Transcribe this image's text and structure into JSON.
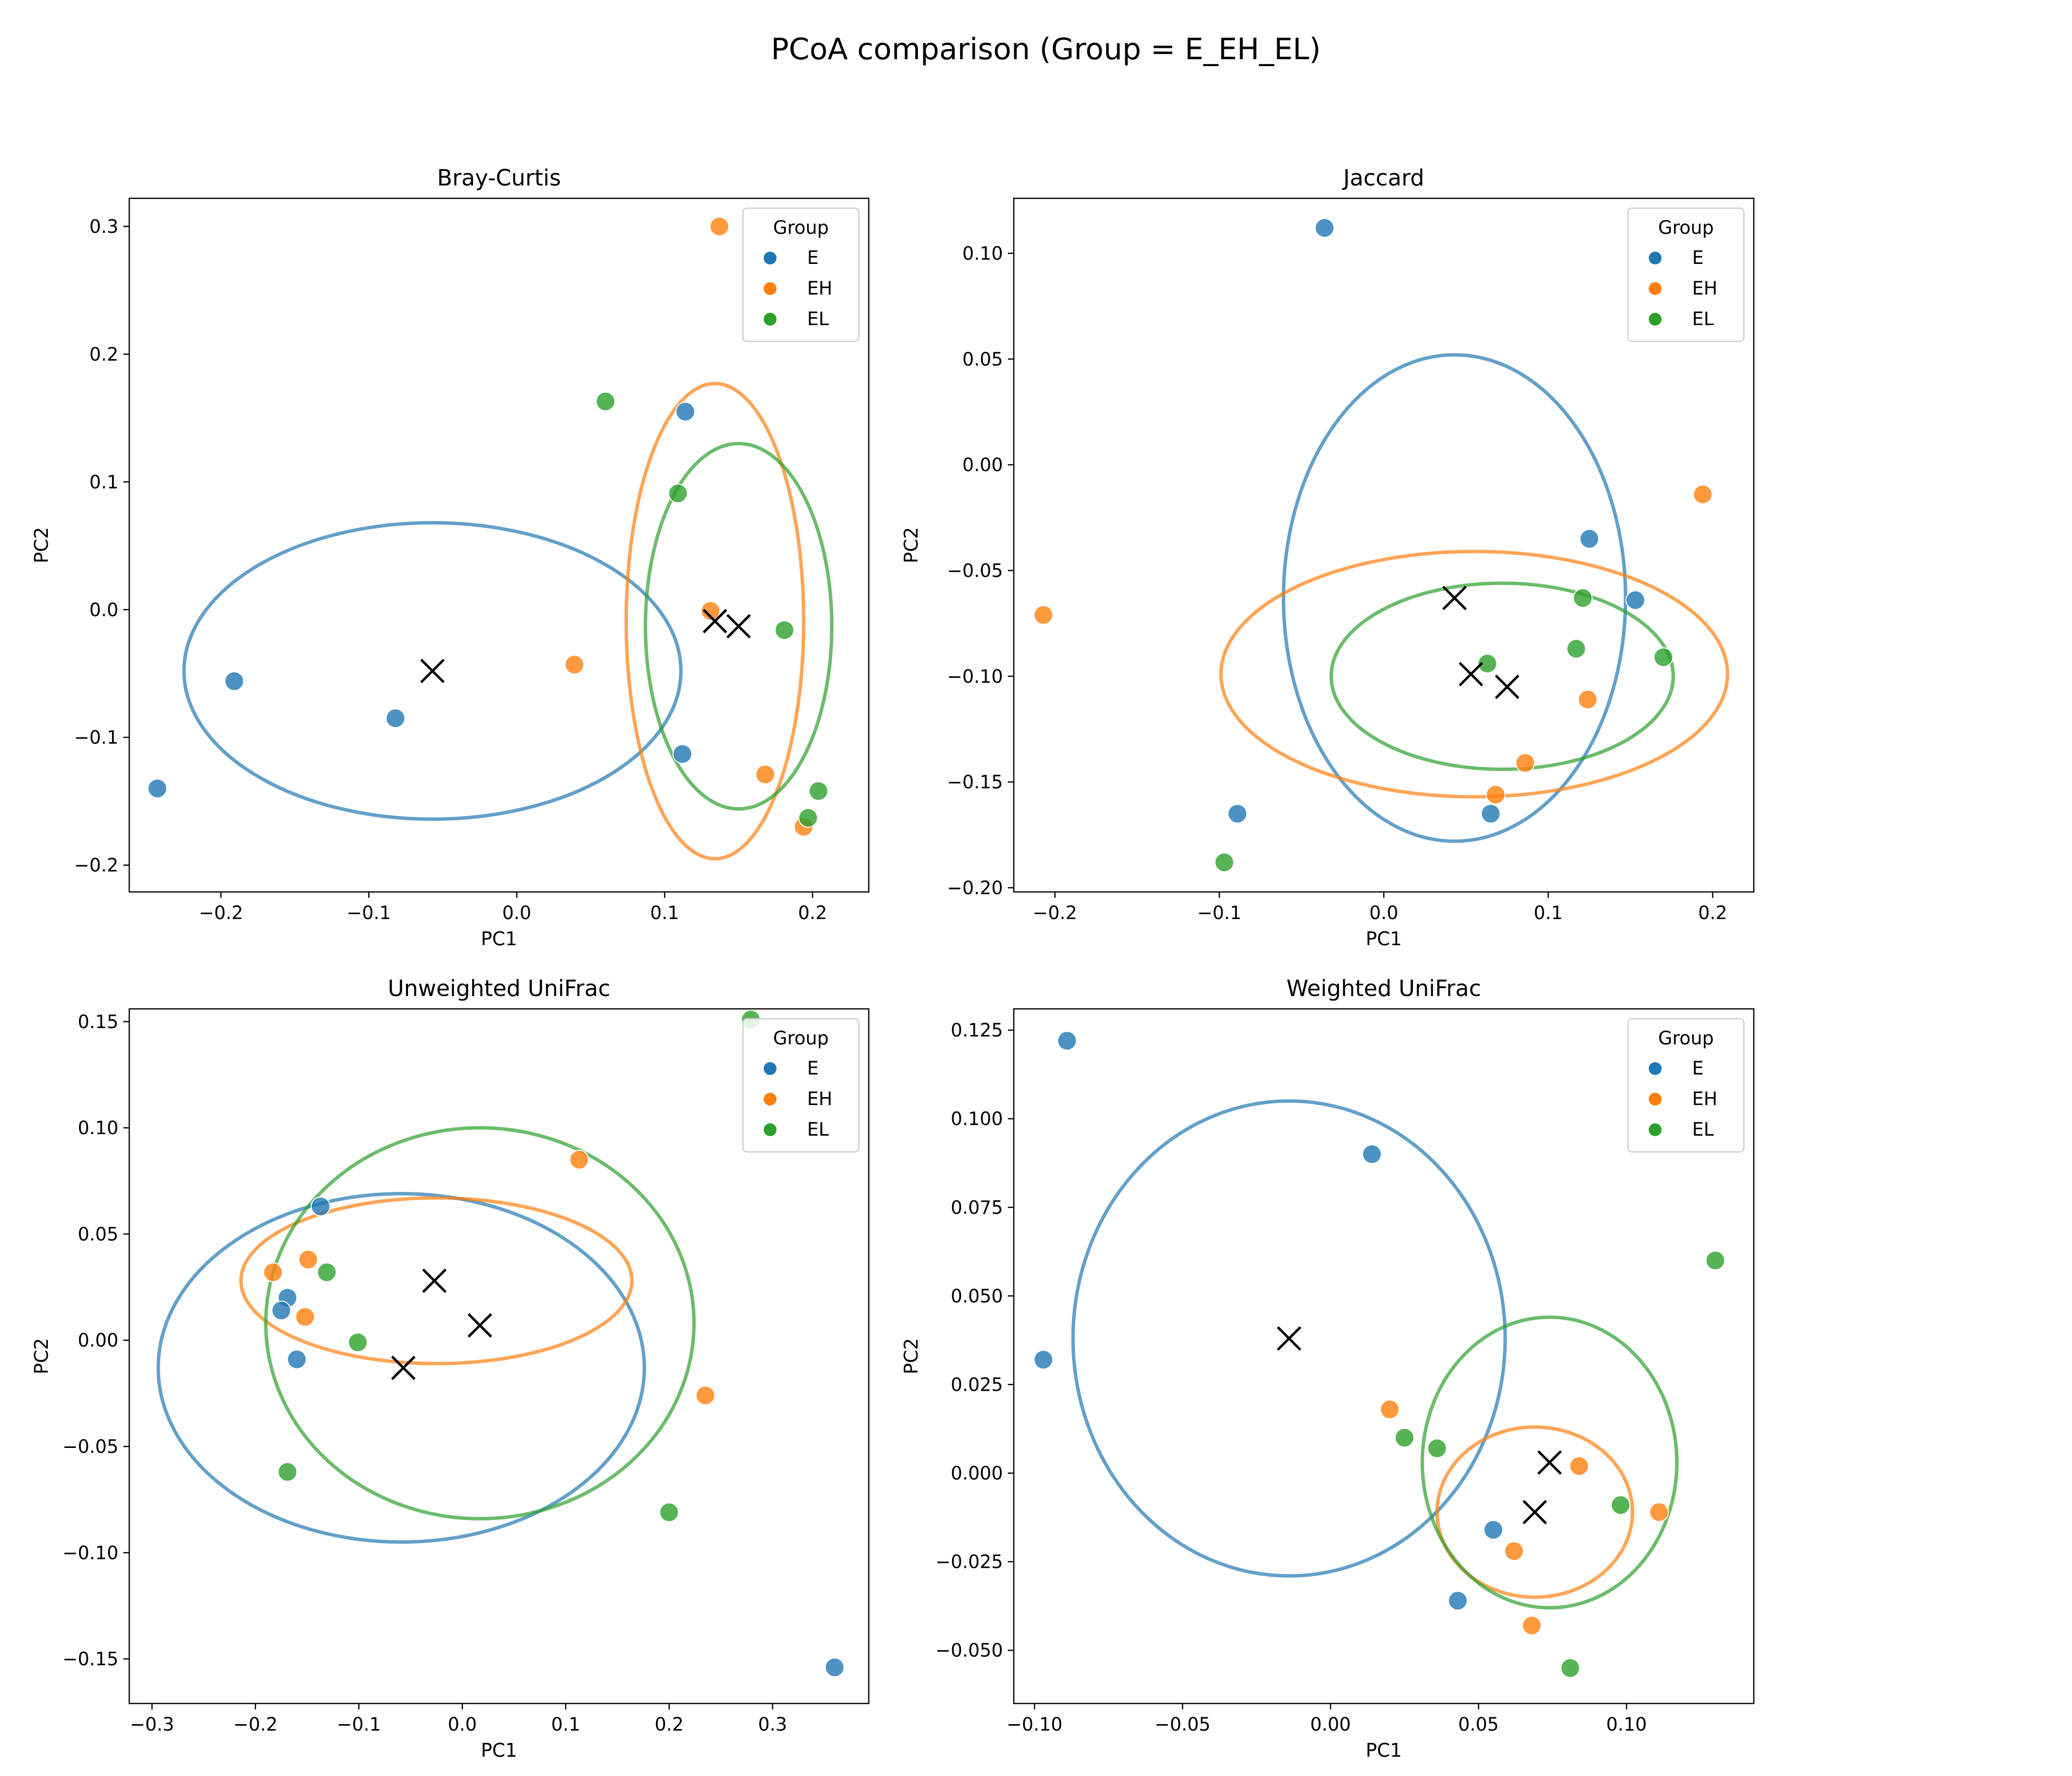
{
  "figure": {
    "title": "PCoA comparison (Group = E_EH_EL)"
  },
  "colors": {
    "E": "#1f77b4",
    "EH": "#ff7f0e",
    "EL": "#2ca02c",
    "centroid": "#000000"
  },
  "chart_data": [
    {
      "type": "scatter",
      "title": "Bray-Curtis",
      "xlabel": "PC1",
      "ylabel": "PC2",
      "xlim": [
        -0.262,
        0.238
      ],
      "ylim": [
        -0.221,
        0.322
      ],
      "xticks": [
        -0.2,
        -0.1,
        0.0,
        0.1,
        0.2
      ],
      "xtick_labels": [
        "−0.2",
        "−0.1",
        "0.0",
        "0.1",
        "0.2"
      ],
      "yticks": [
        -0.2,
        -0.1,
        0.0,
        0.1,
        0.2,
        0.3
      ],
      "ytick_labels": [
        "−0.2",
        "−0.1",
        "0.0",
        "0.1",
        "0.2",
        "0.3"
      ],
      "legend": {
        "title": "Group",
        "position": "upper-right",
        "entries": [
          "E",
          "EH",
          "EL"
        ]
      },
      "series": [
        {
          "name": "E",
          "points": [
            [
              -0.243,
              -0.14
            ],
            [
              -0.191,
              -0.056
            ],
            [
              -0.082,
              -0.085
            ],
            [
              0.114,
              0.155
            ],
            [
              0.112,
              -0.113
            ]
          ]
        },
        {
          "name": "EH",
          "points": [
            [
              0.137,
              0.3
            ],
            [
              0.039,
              -0.043
            ],
            [
              0.131,
              -0.001
            ],
            [
              0.168,
              -0.129
            ],
            [
              0.194,
              -0.17
            ]
          ]
        },
        {
          "name": "EL",
          "points": [
            [
              0.06,
              0.163
            ],
            [
              0.109,
              0.091
            ],
            [
              0.181,
              -0.016
            ],
            [
              0.204,
              -0.142
            ],
            [
              0.197,
              -0.163
            ]
          ]
        }
      ],
      "centroids": [
        {
          "group": "E",
          "x": -0.057,
          "y": -0.048
        },
        {
          "group": "EH",
          "x": 0.134,
          "y": -0.009
        },
        {
          "group": "EL",
          "x": 0.15,
          "y": -0.013
        }
      ],
      "ellipses": [
        {
          "group": "E",
          "cx": -0.057,
          "cy": -0.048,
          "rx": 0.168,
          "ry": 0.116
        },
        {
          "group": "EH",
          "cx": 0.134,
          "cy": -0.009,
          "rx": 0.06,
          "ry": 0.186
        },
        {
          "group": "EL",
          "cx": 0.15,
          "cy": -0.013,
          "rx": 0.063,
          "ry": 0.143
        }
      ]
    },
    {
      "type": "scatter",
      "title": "Jaccard",
      "xlabel": "PC1",
      "ylabel": "PC2",
      "xlim": [
        -0.225,
        0.225
      ],
      "ylim": [
        -0.202,
        0.126
      ],
      "xticks": [
        -0.2,
        -0.1,
        0.0,
        0.1,
        0.2
      ],
      "xtick_labels": [
        "−0.2",
        "−0.1",
        "0.0",
        "0.1",
        "0.2"
      ],
      "yticks": [
        -0.2,
        -0.15,
        -0.1,
        -0.05,
        0.0,
        0.05,
        0.1
      ],
      "ytick_labels": [
        "−0.20",
        "−0.15",
        "−0.10",
        "−0.05",
        "0.00",
        "0.05",
        "0.10"
      ],
      "legend": {
        "title": "Group",
        "position": "upper-right",
        "entries": [
          "E",
          "EH",
          "EL"
        ]
      },
      "series": [
        {
          "name": "E",
          "points": [
            [
              -0.036,
              0.112
            ],
            [
              0.125,
              -0.035
            ],
            [
              0.153,
              -0.064
            ],
            [
              -0.089,
              -0.165
            ],
            [
              0.065,
              -0.165
            ]
          ]
        },
        {
          "name": "EH",
          "points": [
            [
              0.194,
              -0.014
            ],
            [
              -0.207,
              -0.071
            ],
            [
              0.124,
              -0.111
            ],
            [
              0.086,
              -0.141
            ],
            [
              0.068,
              -0.156
            ]
          ]
        },
        {
          "name": "EL",
          "points": [
            [
              0.121,
              -0.063
            ],
            [
              0.117,
              -0.087
            ],
            [
              0.17,
              -0.091
            ],
            [
              0.063,
              -0.094
            ],
            [
              -0.097,
              -0.188
            ]
          ]
        }
      ],
      "centroids": [
        {
          "group": "E",
          "x": 0.043,
          "y": -0.063
        },
        {
          "group": "EH",
          "x": 0.053,
          "y": -0.099
        },
        {
          "group": "EL",
          "x": 0.075,
          "y": -0.105
        }
      ],
      "ellipses": [
        {
          "group": "E",
          "cx": 0.043,
          "cy": -0.063,
          "rx": 0.104,
          "ry": 0.115
        },
        {
          "group": "EH",
          "cx": 0.055,
          "cy": -0.099,
          "rx": 0.154,
          "ry": 0.058
        },
        {
          "group": "EL",
          "cx": 0.072,
          "cy": -0.1,
          "rx": 0.104,
          "ry": 0.044
        }
      ]
    },
    {
      "type": "scatter",
      "title": "Unweighted UniFrac",
      "xlabel": "PC1",
      "ylabel": "PC2",
      "xlim": [
        -0.322,
        0.393
      ],
      "ylim": [
        -0.171,
        0.156
      ],
      "xticks": [
        -0.3,
        -0.2,
        -0.1,
        0.0,
        0.1,
        0.2,
        0.3
      ],
      "xtick_labels": [
        "−0.3",
        "−0.2",
        "−0.1",
        "0.0",
        "0.1",
        "0.2",
        "0.3"
      ],
      "yticks": [
        -0.15,
        -0.1,
        -0.05,
        0.0,
        0.05,
        0.1,
        0.15
      ],
      "ytick_labels": [
        "−0.15",
        "−0.10",
        "−0.05",
        "0.00",
        "0.05",
        "0.10",
        "0.15"
      ],
      "legend": {
        "title": "Group",
        "position": "upper-right",
        "entries": [
          "E",
          "EH",
          "EL"
        ]
      },
      "series": [
        {
          "name": "E",
          "points": [
            [
              -0.137,
              0.063
            ],
            [
              -0.169,
              0.02
            ],
            [
              -0.175,
              0.014
            ],
            [
              -0.16,
              -0.009
            ],
            [
              0.36,
              -0.154
            ]
          ]
        },
        {
          "name": "EH",
          "points": [
            [
              -0.183,
              0.032
            ],
            [
              -0.149,
              0.038
            ],
            [
              -0.152,
              0.011
            ],
            [
              0.113,
              0.085
            ],
            [
              0.235,
              -0.026
            ]
          ]
        },
        {
          "name": "EL",
          "points": [
            [
              0.279,
              0.151
            ],
            [
              -0.131,
              0.032
            ],
            [
              -0.101,
              -0.001
            ],
            [
              -0.169,
              -0.062
            ],
            [
              0.2,
              -0.081
            ]
          ]
        }
      ],
      "centroids": [
        {
          "group": "E",
          "x": -0.057,
          "y": -0.013
        },
        {
          "group": "EH",
          "x": -0.027,
          "y": 0.028
        },
        {
          "group": "EL",
          "x": 0.017,
          "y": 0.007
        }
      ],
      "ellipses": [
        {
          "group": "E",
          "cx": -0.059,
          "cy": -0.013,
          "rx": 0.235,
          "ry": 0.082
        },
        {
          "group": "EH",
          "cx": -0.025,
          "cy": 0.028,
          "rx": 0.189,
          "ry": 0.039
        },
        {
          "group": "EL",
          "cx": 0.017,
          "cy": 0.008,
          "rx": 0.207,
          "ry": 0.092
        }
      ]
    },
    {
      "type": "scatter",
      "title": "Weighted UniFrac",
      "xlabel": "PC1",
      "ylabel": "PC2",
      "xlim": [
        -0.107,
        0.143
      ],
      "ylim": [
        -0.065,
        0.131
      ],
      "xticks": [
        -0.1,
        -0.05,
        0.0,
        0.05,
        0.1
      ],
      "xtick_labels": [
        "−0.10",
        "−0.05",
        "0.00",
        "0.05",
        "0.10"
      ],
      "yticks": [
        -0.05,
        -0.025,
        0.0,
        0.025,
        0.05,
        0.075,
        0.1,
        0.125
      ],
      "ytick_labels": [
        "−0.050",
        "−0.025",
        "0.000",
        "0.025",
        "0.050",
        "0.075",
        "0.100",
        "0.125"
      ],
      "legend": {
        "title": "Group",
        "position": "upper-right",
        "entries": [
          "E",
          "EH",
          "EL"
        ]
      },
      "series": [
        {
          "name": "E",
          "points": [
            [
              -0.089,
              0.122
            ],
            [
              0.014,
              0.09
            ],
            [
              -0.097,
              0.032
            ],
            [
              0.055,
              -0.016
            ],
            [
              0.043,
              -0.036
            ]
          ]
        },
        {
          "name": "EH",
          "points": [
            [
              0.02,
              0.018
            ],
            [
              0.084,
              0.002
            ],
            [
              0.062,
              -0.022
            ],
            [
              0.111,
              -0.011
            ],
            [
              0.068,
              -0.043
            ]
          ]
        },
        {
          "name": "EL",
          "points": [
            [
              0.13,
              0.06
            ],
            [
              0.025,
              0.01
            ],
            [
              0.036,
              0.007
            ],
            [
              0.098,
              -0.009
            ],
            [
              0.081,
              -0.055
            ]
          ]
        }
      ],
      "centroids": [
        {
          "group": "E",
          "x": -0.014,
          "y": 0.038
        },
        {
          "group": "EH",
          "x": 0.069,
          "y": -0.011
        },
        {
          "group": "EL",
          "x": 0.074,
          "y": 0.003
        }
      ],
      "ellipses": [
        {
          "group": "E",
          "cx": -0.014,
          "cy": 0.038,
          "rx": 0.073,
          "ry": 0.067
        },
        {
          "group": "EH",
          "cx": 0.069,
          "cy": -0.011,
          "rx": 0.033,
          "ry": 0.024
        },
        {
          "group": "EL",
          "cx": 0.074,
          "cy": 0.003,
          "rx": 0.043,
          "ry": 0.041
        }
      ]
    }
  ]
}
